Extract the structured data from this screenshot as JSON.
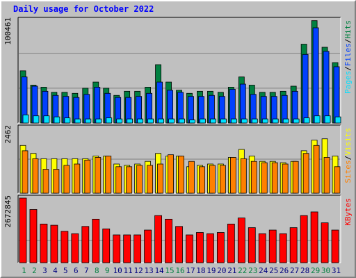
{
  "title": "Daily usage for October 2022",
  "colors": {
    "hits": "#008040",
    "files": "#0040ff",
    "pages": "#00e0ff",
    "visits": "#ffff00",
    "sites": "#ff8000",
    "kbytes": "#ff0000",
    "weekday_label": "#000080",
    "weekend_label": "#008040"
  },
  "chart_data": [
    {
      "type": "bar",
      "categories": [
        "1",
        "2",
        "3",
        "4",
        "5",
        "6",
        "7",
        "8",
        "9",
        "10",
        "11",
        "12",
        "13",
        "14",
        "15",
        "16",
        "17",
        "18",
        "19",
        "20",
        "21",
        "22",
        "23",
        "24",
        "25",
        "26",
        "27",
        "28",
        "29",
        "30",
        "31"
      ],
      "weekend_days": [
        "1",
        "2",
        "8",
        "9",
        "15",
        "16",
        "22",
        "23",
        "29",
        "30"
      ],
      "ymax_label": "100461",
      "ylim": [
        0,
        100461
      ],
      "series": [
        {
          "name": "Hits",
          "values": [
            51000,
            37000,
            35000,
            30000,
            30000,
            29000,
            34000,
            40000,
            34000,
            27000,
            31000,
            31000,
            35000,
            57000,
            40000,
            32000,
            29000,
            31000,
            31000,
            30000,
            35000,
            45000,
            37000,
            30000,
            30000,
            31000,
            36000,
            77000,
            100000,
            74000,
            59000
          ]
        },
        {
          "name": "Files",
          "values": [
            45000,
            36000,
            31000,
            27000,
            26000,
            25000,
            28000,
            35000,
            29000,
            25000,
            25000,
            26000,
            29000,
            40000,
            32000,
            30000,
            26000,
            26000,
            27000,
            26000,
            33000,
            38000,
            28000,
            26000,
            26000,
            27000,
            31000,
            67000,
            93000,
            70000,
            55000
          ]
        },
        {
          "name": "Pages",
          "values": [
            8000,
            7000,
            7000,
            6000,
            5000,
            4000,
            4000,
            4000,
            5000,
            4000,
            4000,
            4000,
            4000,
            4000,
            4000,
            4000,
            3000,
            4000,
            4000,
            4000,
            4000,
            4000,
            4000,
            4000,
            4000,
            4000,
            4000,
            5000,
            7000,
            7000,
            6000
          ]
        }
      ],
      "ylabel_parts": [
        "Pages",
        "Files",
        "Hits"
      ]
    },
    {
      "type": "bar",
      "ymax_label": "2462",
      "ylim": [
        0,
        2462
      ],
      "series": [
        {
          "name": "Visits",
          "values": [
            1800,
            1500,
            1300,
            1300,
            1300,
            1300,
            1300,
            1400,
            1400,
            1100,
            1050,
            1100,
            1200,
            1500,
            1400,
            1400,
            1000,
            1050,
            1100,
            1100,
            1350,
            1650,
            1400,
            1200,
            1200,
            1150,
            1200,
            1600,
            2000,
            2050,
            1400
          ]
        },
        {
          "name": "Sites",
          "values": [
            1600,
            1300,
            900,
            900,
            1050,
            1100,
            1250,
            1350,
            1400,
            1000,
            1000,
            1050,
            1050,
            1100,
            1450,
            1400,
            1200,
            1000,
            1050,
            1050,
            1350,
            1300,
            1200,
            1150,
            1150,
            1100,
            1200,
            1500,
            1800,
            1350,
            1000
          ]
        }
      ],
      "ylabel_parts": [
        "Sites",
        "Visits"
      ]
    },
    {
      "type": "bar",
      "ymax_label": "2672845",
      "ylim": [
        0,
        2672845
      ],
      "series": [
        {
          "name": "KBytes",
          "values": [
            2672845,
            2200000,
            1600000,
            1550000,
            1300000,
            1200000,
            1500000,
            1800000,
            1400000,
            1150000,
            1150000,
            1150000,
            1350000,
            1950000,
            1800000,
            1500000,
            1150000,
            1250000,
            1200000,
            1250000,
            1600000,
            1850000,
            1450000,
            1200000,
            1350000,
            1200000,
            1450000,
            1950000,
            2100000,
            1650000,
            1350000
          ]
        }
      ],
      "ylabel_parts": [
        "KBytes"
      ]
    }
  ]
}
